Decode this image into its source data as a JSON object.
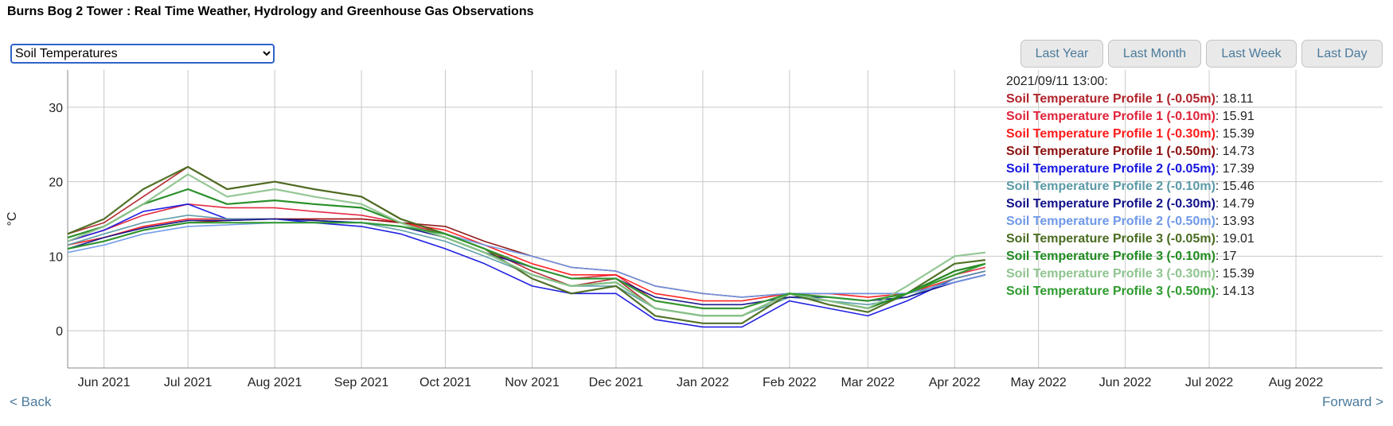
{
  "page": {
    "title": "Burns Bog 2 Tower : Real Time Weather, Hydrology and Greenhouse Gas Observations"
  },
  "variable_select": {
    "selected": "Soil Temperatures"
  },
  "range_buttons": [
    "Last Year",
    "Last Month",
    "Last Week",
    "Last Day"
  ],
  "nav": {
    "back": "< Back",
    "forward": "Forward >"
  },
  "chart_data": {
    "type": "line",
    "ylabel": "°C",
    "ylim": [
      -5,
      35
    ],
    "yticks": [
      0,
      10,
      20,
      30
    ],
    "xlim": [
      "2021-05-19",
      "2022-09-01"
    ],
    "xticks": [
      {
        "date": "2021-06-01",
        "label": "Jun 2021"
      },
      {
        "date": "2021-07-01",
        "label": "Jul 2021"
      },
      {
        "date": "2021-08-01",
        "label": "Aug 2021"
      },
      {
        "date": "2021-09-01",
        "label": "Sep 2021"
      },
      {
        "date": "2021-10-01",
        "label": "Oct 2021"
      },
      {
        "date": "2021-11-01",
        "label": "Nov 2021"
      },
      {
        "date": "2021-12-01",
        "label": "Dec 2021"
      },
      {
        "date": "2022-01-01",
        "label": "Jan 2022"
      },
      {
        "date": "2022-02-01",
        "label": "Feb 2022"
      },
      {
        "date": "2022-03-01",
        "label": "Mar 2022"
      },
      {
        "date": "2022-04-01",
        "label": "Apr 2022"
      },
      {
        "date": "2022-05-01",
        "label": "May 2022"
      },
      {
        "date": "2022-06-01",
        "label": "Jun 2022"
      },
      {
        "date": "2022-07-01",
        "label": "Jul 2022"
      },
      {
        "date": "2022-08-01",
        "label": "Aug 2022"
      }
    ],
    "grid": true,
    "legend_position": "top-right",
    "legend_timestamp": "2021/09/11 13:00:",
    "x": [
      "2021-05-19",
      "2021-06-01",
      "2021-06-15",
      "2021-07-01",
      "2021-07-15",
      "2021-08-01",
      "2021-08-15",
      "2021-09-01",
      "2021-09-15",
      "2021-10-01",
      "2021-10-15",
      "2021-11-01",
      "2021-11-15",
      "2021-12-01",
      "2021-12-15",
      "2022-01-01",
      "2022-01-15",
      "2022-02-01",
      "2022-02-15",
      "2022-03-01",
      "2022-03-15",
      "2022-04-01",
      "2022-04-12"
    ],
    "series": [
      {
        "name": "Soil Temperature Profile 1 (-0.05m)",
        "value": "18.11",
        "color": "#b0232a",
        "values": [
          13,
          14.5,
          18,
          22,
          19,
          20,
          19,
          18,
          15,
          13,
          11,
          8,
          6,
          7,
          3,
          2,
          2,
          5,
          4,
          3,
          5,
          8,
          9
        ]
      },
      {
        "name": "Soil Temperature Profile 1 (-0.10m)",
        "value": "15.91",
        "color": "#e0233a",
        "values": [
          12,
          13.5,
          15.5,
          17,
          16.5,
          16.5,
          16,
          15.5,
          14.5,
          13,
          11,
          8.5,
          7,
          7.5,
          4,
          3,
          3,
          5,
          4.5,
          4,
          5,
          7.5,
          8.5
        ]
      },
      {
        "name": "Soil Temperature Profile 1 (-0.30m)",
        "value": "15.39",
        "color": "#ff1a1a",
        "values": [
          11.5,
          12.5,
          14,
          15,
          15,
          15,
          15,
          15,
          14.5,
          13.5,
          11.5,
          9,
          7.5,
          7.5,
          5,
          4,
          4,
          5,
          5,
          4.5,
          5,
          7,
          8
        ]
      },
      {
        "name": "Soil Temperature Profile 1 (-0.50m)",
        "value": "14.73",
        "color": "#8b0f0f",
        "values": [
          11,
          12,
          13.5,
          14.5,
          14.8,
          15,
          15,
          15,
          14.5,
          14,
          12,
          10,
          8.5,
          8,
          6,
          5,
          4.5,
          5,
          5,
          5,
          5,
          6.5,
          7.5
        ]
      },
      {
        "name": "Soil Temperature Profile 2 (-0.05m)",
        "value": "17.39",
        "color": "#1515e0",
        "values": [
          12,
          13.5,
          16,
          17,
          15,
          15,
          14.5,
          14,
          13,
          11,
          9,
          6,
          5,
          5,
          1.5,
          0.5,
          0.5,
          4,
          3,
          2,
          4,
          7,
          8
        ]
      },
      {
        "name": "Soil Temperature Profile 2 (-0.10m)",
        "value": "15.46",
        "color": "#5a9aa6",
        "values": [
          11.5,
          13,
          14.5,
          15.5,
          15,
          15,
          14.8,
          14.5,
          13.5,
          12,
          10,
          7.5,
          6,
          6,
          3,
          2,
          2,
          4.5,
          4,
          3.5,
          4.5,
          7,
          8
        ]
      },
      {
        "name": "Soil Temperature Profile 2 (-0.30m)",
        "value": "14.79",
        "color": "#10108a",
        "values": [
          11,
          12.5,
          13.8,
          14.8,
          14.8,
          15,
          14.8,
          14.5,
          14,
          12.5,
          10.5,
          8.5,
          7,
          7,
          4.5,
          3.5,
          3.5,
          4.5,
          4.5,
          4,
          4.5,
          6.5,
          7.5
        ]
      },
      {
        "name": "Soil Temperature Profile 2 (-0.50m)",
        "value": "13.93",
        "color": "#6e98e8",
        "values": [
          10.5,
          11.5,
          13,
          14,
          14.2,
          14.5,
          14.5,
          14.5,
          14,
          13,
          11.5,
          10,
          8.5,
          8,
          6,
          5,
          4.5,
          5,
          5,
          5,
          5,
          6.5,
          7.5
        ]
      },
      {
        "name": "Soil Temperature Profile 3 (-0.05m)",
        "value": "19.01",
        "color": "#4a6b1f",
        "values": [
          13,
          15,
          19,
          22,
          19,
          20,
          19,
          18,
          15,
          13,
          11,
          7,
          5,
          6,
          2,
          1,
          1,
          5,
          3.5,
          2.5,
          5,
          9,
          9.5
        ]
      },
      {
        "name": "Soil Temperature Profile 3 (-0.10m)",
        "value": "17",
        "color": "#1f8a1f",
        "values": [
          12.5,
          14,
          17,
          19,
          17,
          17.5,
          17,
          16.5,
          14.5,
          12.5,
          10.5,
          7.5,
          6,
          6.5,
          3,
          2,
          2,
          5,
          4,
          3,
          5,
          8,
          9
        ]
      },
      {
        "name": "Soil Temperature Profile 3 (-0.30m)",
        "value": "15.39",
        "color": "#8fc48f",
        "values": [
          12,
          14,
          17,
          21,
          18,
          19,
          18,
          17,
          14.5,
          12.5,
          10.5,
          7.5,
          6,
          6.5,
          3,
          2,
          2,
          5,
          4,
          3,
          6,
          10,
          10.5
        ]
      },
      {
        "name": "Soil Temperature Profile 3 (-0.50m)",
        "value": "14.13",
        "color": "#2e9a2e",
        "values": [
          11,
          12,
          13.5,
          14.5,
          14.5,
          14.5,
          14.5,
          14.5,
          14,
          13,
          11,
          8.5,
          7,
          7,
          4,
          3,
          3,
          5,
          4.5,
          4,
          5,
          7.5,
          9
        ]
      }
    ]
  }
}
